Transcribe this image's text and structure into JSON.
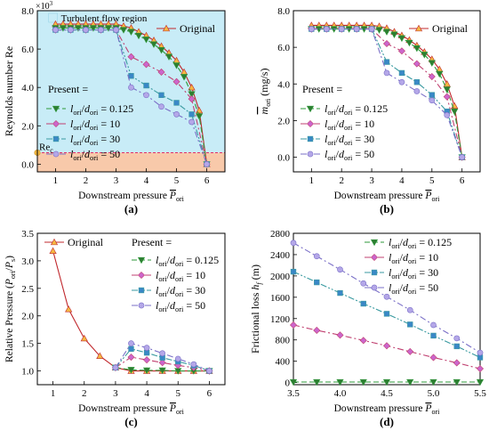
{
  "colors": {
    "original": "#c0282d",
    "original_marker": "#f5b942",
    "p0125": "#2e9a3a",
    "p0125_marker": "#2e7d32",
    "p10": "#c04070",
    "p10_marker": "#cc66cc",
    "p30": "#3a9aa0",
    "p30_marker": "#3a88c6",
    "p50": "#7a6fc7",
    "p50_marker": "#b4a7e8",
    "turbulent": "#c8ecf7",
    "laminar": "#f8c9aa",
    "re_line": "#e0306a"
  },
  "chart_data": [
    {
      "id": "a",
      "type": "line",
      "panel_label": "(a)",
      "xlabel": "Downstream pressure P̄ori",
      "xlabel_main": "Downstream pressure ",
      "xlabel_sym": "P",
      "xlabel_sub": "ori",
      "ylabel": "Reynolds number Re",
      "y_multiplier": "×10³",
      "y_mult_base": "×10",
      "y_mult_exp": "3",
      "xlim": [
        0.4,
        6.6
      ],
      "ylim": [
        -0.4,
        8.0
      ],
      "xticks": [
        1,
        2,
        3,
        4,
        5,
        6
      ],
      "yticks": [
        0.0,
        2.0,
        4.0,
        6.0,
        8.0
      ],
      "ytick_labels": [
        "0.0",
        "2.0",
        "4.0",
        "6.0",
        "8.0"
      ],
      "regions": {
        "turbulent_label": "Turbulent flow region",
        "re_c": 0.6,
        "re_c_label": "Re",
        "re_c_sub": "c"
      },
      "legend_present_label": "Present =",
      "series": [
        {
          "name": "Original",
          "key": "original",
          "marker": "triangle-up",
          "dash": "solid",
          "x": [
            1,
            1.25,
            1.5,
            1.75,
            2,
            2.25,
            2.5,
            2.75,
            3,
            3.25,
            3.5,
            3.75,
            4,
            4.25,
            4.5,
            4.75,
            5,
            5.25,
            5.5,
            5.75,
            6
          ],
          "y": [
            7.3,
            7.3,
            7.3,
            7.3,
            7.3,
            7.3,
            7.3,
            7.3,
            7.3,
            7.2,
            7.1,
            6.9,
            6.7,
            6.45,
            6.15,
            5.8,
            5.4,
            4.8,
            4.0,
            2.8,
            0.0
          ]
        },
        {
          "name": "lori/dori = 0.125",
          "key": "p0125",
          "marker": "triangle-down",
          "dash": "dash",
          "x": [
            1,
            1.25,
            1.5,
            1.75,
            2,
            2.25,
            2.5,
            2.75,
            3,
            3.25,
            3.5,
            3.75,
            4,
            4.25,
            4.5,
            4.75,
            5,
            5.25,
            5.5,
            5.75,
            6
          ],
          "y": [
            7.1,
            7.1,
            7.1,
            7.1,
            7.1,
            7.1,
            7.1,
            7.1,
            7.1,
            7.0,
            6.9,
            6.7,
            6.5,
            6.25,
            5.95,
            5.6,
            5.15,
            4.55,
            3.65,
            2.5,
            0.0
          ]
        },
        {
          "name": "lori/dori = 10",
          "key": "p10",
          "marker": "diamond",
          "dash": "dashdot",
          "x": [
            1,
            1.5,
            2,
            2.5,
            3,
            3.5,
            4,
            4.5,
            5,
            5.5,
            6
          ],
          "y": [
            7.0,
            7.0,
            7.0,
            7.0,
            7.0,
            5.6,
            5.2,
            4.8,
            4.3,
            3.4,
            0.0
          ]
        },
        {
          "name": "lori/dori = 30",
          "key": "p30",
          "marker": "square",
          "dash": "dashdotdot",
          "x": [
            1,
            1.5,
            2,
            2.5,
            3,
            3.5,
            4,
            4.5,
            5,
            5.5,
            6
          ],
          "y": [
            7.0,
            7.0,
            7.0,
            7.0,
            7.0,
            4.6,
            4.1,
            3.6,
            3.2,
            2.6,
            0.0
          ]
        },
        {
          "name": "lori/dori = 50",
          "key": "p50",
          "marker": "circle",
          "dash": "dashdot",
          "x": [
            1,
            1.5,
            2,
            2.5,
            3,
            3.5,
            4,
            4.5,
            5,
            5.5,
            6
          ],
          "y": [
            7.0,
            7.0,
            7.0,
            7.0,
            7.0,
            4.0,
            3.6,
            3.0,
            2.6,
            2.2,
            0.0
          ]
        }
      ]
    },
    {
      "id": "b",
      "type": "line",
      "panel_label": "(b)",
      "xlabel": "Downstream pressure P̄ori",
      "xlabel_main": "Downstream pressure ",
      "xlabel_sym": "P",
      "xlabel_sub": "ori",
      "ylabel": "ṁori (mg/s)",
      "ylabel_sym": "m",
      "ylabel_sub": "ori",
      "ylabel_unit": " (mg/s)",
      "xlim": [
        0.4,
        6.6
      ],
      "ylim": [
        -0.8,
        8.0
      ],
      "xticks": [
        1,
        2,
        3,
        4,
        5,
        6
      ],
      "yticks": [
        0.0,
        2.0,
        4.0,
        6.0,
        8.0
      ],
      "ytick_labels": [
        "0.0",
        "2.0",
        "4.0",
        "6.0",
        "8.0"
      ],
      "legend_present_label": "Present =",
      "series": [
        {
          "name": "Original",
          "key": "original",
          "marker": "triangle-up",
          "dash": "solid",
          "x": [
            1,
            1.25,
            1.5,
            1.75,
            2,
            2.25,
            2.5,
            2.75,
            3,
            3.25,
            3.5,
            3.75,
            4,
            4.25,
            4.5,
            4.75,
            5,
            5.25,
            5.5,
            5.75,
            6
          ],
          "y": [
            7.2,
            7.2,
            7.2,
            7.2,
            7.2,
            7.2,
            7.2,
            7.2,
            7.2,
            7.15,
            7.05,
            6.85,
            6.65,
            6.4,
            6.1,
            5.75,
            5.35,
            4.8,
            4.0,
            2.8,
            0.0
          ]
        },
        {
          "name": "lori/dori = 0.125",
          "key": "p0125",
          "marker": "triangle-down",
          "dash": "dash",
          "x": [
            1,
            1.25,
            1.5,
            1.75,
            2,
            2.25,
            2.5,
            2.75,
            3,
            3.25,
            3.5,
            3.75,
            4,
            4.25,
            4.5,
            4.75,
            5,
            5.25,
            5.5,
            5.75,
            6
          ],
          "y": [
            7.0,
            7.0,
            7.0,
            7.0,
            7.0,
            7.0,
            7.0,
            7.0,
            7.0,
            6.95,
            6.85,
            6.7,
            6.5,
            6.25,
            5.95,
            5.6,
            5.15,
            4.55,
            3.7,
            2.5,
            0.0
          ]
        },
        {
          "name": "lori/dori = 10",
          "key": "p10",
          "marker": "diamond",
          "dash": "dashdot",
          "x": [
            1,
            1.5,
            2,
            2.5,
            3,
            3.5,
            4,
            4.5,
            5,
            5.5,
            6
          ],
          "y": [
            7.0,
            7.0,
            7.0,
            7.0,
            7.0,
            6.2,
            5.8,
            5.1,
            4.4,
            3.3,
            0.0
          ]
        },
        {
          "name": "lori/dori = 30",
          "key": "p30",
          "marker": "square",
          "dash": "dashdotdot",
          "x": [
            1,
            1.5,
            2,
            2.5,
            3,
            3.5,
            4,
            4.5,
            5,
            5.5,
            6
          ],
          "y": [
            7.0,
            7.0,
            7.0,
            7.0,
            7.0,
            5.2,
            4.6,
            4.1,
            3.4,
            2.5,
            0.0
          ]
        },
        {
          "name": "lori/dori = 50",
          "key": "p50",
          "marker": "circle",
          "dash": "dashdot",
          "x": [
            1,
            1.5,
            2,
            2.5,
            3,
            3.5,
            4,
            4.5,
            5,
            5.5,
            6
          ],
          "y": [
            7.0,
            7.0,
            7.0,
            7.0,
            7.0,
            4.6,
            4.1,
            3.6,
            3.1,
            2.3,
            0.0
          ]
        }
      ]
    },
    {
      "id": "c",
      "type": "line",
      "panel_label": "(c)",
      "xlabel": "Downstream pressure P̄ori",
      "xlabel_main": "Downstream pressure ",
      "xlabel_sym": "P",
      "xlabel_sub": "ori",
      "ylabel": "Relative Pressure (Pori/Ps)",
      "xlim": [
        0.5,
        6.5
      ],
      "ylim": [
        0.75,
        3.5
      ],
      "xticks": [
        1,
        2,
        3,
        4,
        5,
        6
      ],
      "yticks": [
        1.0,
        1.5,
        2.0,
        2.5,
        3.0,
        3.5
      ],
      "ytick_labels": [
        "1.0",
        "1.5",
        "2.0",
        "2.5",
        "3.0",
        "3.5"
      ],
      "legend_present_label": "Present =",
      "series": [
        {
          "name": "Original",
          "key": "original",
          "marker": "triangle-up",
          "dash": "solid",
          "x": [
            1,
            1.5,
            2,
            2.5,
            3,
            3.5,
            4,
            4.5,
            5,
            5.5,
            6
          ],
          "y": [
            3.18,
            2.12,
            1.59,
            1.27,
            1.06,
            1.0,
            1.0,
            1.0,
            1.0,
            1.0,
            1.0
          ]
        },
        {
          "name": "lori/dori = 0.125",
          "key": "p0125",
          "marker": "triangle-down",
          "dash": "dash",
          "x": [
            3,
            3.5,
            4,
            4.5,
            5,
            5.5,
            6
          ],
          "y": [
            1.06,
            1.02,
            1.01,
            1.01,
            1.0,
            1.0,
            1.0
          ]
        },
        {
          "name": "lori/dori = 10",
          "key": "p10",
          "marker": "diamond",
          "dash": "dashdot",
          "x": [
            3,
            3.5,
            4,
            4.5,
            5,
            5.5,
            6
          ],
          "y": [
            1.06,
            1.25,
            1.2,
            1.15,
            1.1,
            1.06,
            1.0
          ]
        },
        {
          "name": "lori/dori = 30",
          "key": "p30",
          "marker": "square",
          "dash": "dashdotdot",
          "x": [
            3,
            3.5,
            4,
            4.5,
            5,
            5.5,
            6
          ],
          "y": [
            1.06,
            1.4,
            1.33,
            1.24,
            1.17,
            1.1,
            1.0
          ]
        },
        {
          "name": "lori/dori = 50",
          "key": "p50",
          "marker": "circle",
          "dash": "dashdot",
          "x": [
            3,
            3.5,
            4,
            4.5,
            5,
            5.5,
            6
          ],
          "y": [
            1.06,
            1.5,
            1.42,
            1.32,
            1.22,
            1.12,
            1.0
          ]
        }
      ]
    },
    {
      "id": "d",
      "type": "line",
      "panel_label": "(d)",
      "xlabel": "Downstream pressure P̄ori",
      "xlabel_main": "Downstream pressure ",
      "xlabel_sym": "P",
      "xlabel_sub": "ori",
      "ylabel": "Frictional loss hf (m)",
      "xlim": [
        3.5,
        5.5
      ],
      "ylim": [
        -40,
        2800
      ],
      "xticks": [
        3.5,
        4.0,
        4.5,
        5.0,
        5.5
      ],
      "xtick_labels": [
        "3.5",
        "4.0",
        "4.5",
        "5.0",
        "5.5"
      ],
      "yticks": [
        0,
        400,
        800,
        1200,
        1600,
        2000,
        2400,
        2800
      ],
      "ytick_labels": [
        "0",
        "400",
        "800",
        "1200",
        "1600",
        "2000",
        "2400",
        "2800"
      ],
      "series": [
        {
          "name": "lori/dori = 0.125",
          "key": "p0125",
          "marker": "triangle-down",
          "dash": "dash",
          "x": [
            3.5,
            3.75,
            4.0,
            4.25,
            4.5,
            4.75,
            5.0,
            5.25,
            5.5
          ],
          "y": [
            10,
            10,
            10,
            10,
            10,
            10,
            10,
            10,
            10
          ]
        },
        {
          "name": "lori/dori = 10",
          "key": "p10",
          "marker": "diamond",
          "dash": "dashdot",
          "x": [
            3.5,
            3.75,
            4.0,
            4.25,
            4.5,
            4.75,
            5.0,
            5.25,
            5.5
          ],
          "y": [
            1080,
            980,
            890,
            790,
            690,
            580,
            470,
            370,
            260
          ]
        },
        {
          "name": "lori/dori = 30",
          "key": "p30",
          "marker": "square",
          "dash": "dashdotdot",
          "x": [
            3.5,
            3.75,
            4.0,
            4.25,
            4.5,
            4.75,
            5.0,
            5.25,
            5.5
          ],
          "y": [
            2080,
            1880,
            1680,
            1480,
            1290,
            1090,
            880,
            680,
            470
          ]
        },
        {
          "name": "lori/dori = 50",
          "key": "p50",
          "marker": "circle",
          "dash": "dashdot",
          "x": [
            3.5,
            3.75,
            4.0,
            4.25,
            4.5,
            4.75,
            5.0,
            5.25,
            5.5
          ],
          "y": [
            2620,
            2370,
            2120,
            1860,
            1610,
            1360,
            1080,
            830,
            560
          ]
        }
      ]
    }
  ],
  "legend_sub": {
    "l": "l",
    "ori": "ori",
    "d": "d"
  }
}
